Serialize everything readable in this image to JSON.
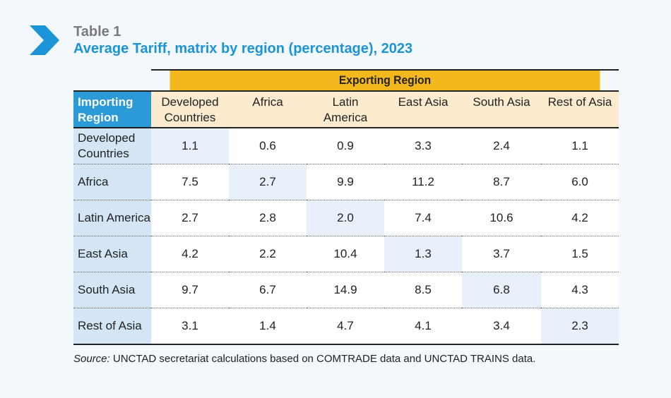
{
  "header": {
    "table_label": "Table 1",
    "title": "Average Tariff, matrix by region (percentage), 2023",
    "chevron_icon": "chevron-right-icon",
    "accent_color": "#1b94d8"
  },
  "table": {
    "exporting_header": "Exporting Region",
    "importing_header_line1": "Importing",
    "importing_header_line2": "Region",
    "columns": [
      {
        "line1": "Developed",
        "line2": "Countries"
      },
      {
        "line1": "Africa",
        "line2": ""
      },
      {
        "line1": "Latin",
        "line2": "America"
      },
      {
        "line1": "East Asia",
        "line2": ""
      },
      {
        "line1": "South Asia",
        "line2": ""
      },
      {
        "line1": "Rest of Asia",
        "line2": ""
      }
    ],
    "rows": [
      {
        "line1": "Developed",
        "line2": "Countries",
        "values": [
          "1.1",
          "0.6",
          "0.9",
          "3.3",
          "2.4",
          "1.1"
        ]
      },
      {
        "line1": "Africa",
        "line2": "",
        "values": [
          "7.5",
          "2.7",
          "9.9",
          "11.2",
          "8.7",
          "6.0"
        ]
      },
      {
        "line1": "Latin America",
        "line2": "",
        "values": [
          "2.7",
          "2.8",
          "2.0",
          "7.4",
          "10.6",
          "4.2"
        ]
      },
      {
        "line1": "East Asia",
        "line2": "",
        "values": [
          "4.2",
          "2.2",
          "10.4",
          "1.3",
          "3.7",
          "1.5"
        ]
      },
      {
        "line1": "South Asia",
        "line2": "",
        "values": [
          "9.7",
          "6.7",
          "14.9",
          "8.5",
          "6.8",
          "4.3"
        ]
      },
      {
        "line1": "Rest of Asia",
        "line2": "",
        "values": [
          "3.1",
          "1.4",
          "4.7",
          "4.1",
          "3.4",
          "2.3"
        ]
      }
    ]
  },
  "source": {
    "label": "Source:",
    "text": " UNCTAD secretariat calculations based on COMTRADE data and UNCTAD TRAINS data."
  }
}
